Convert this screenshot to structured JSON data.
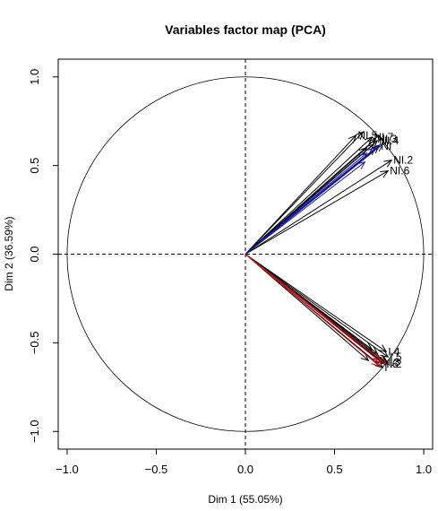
{
  "chart_data": {
    "type": "scatter",
    "title": "Variables factor map (PCA)",
    "xlabel": "Dim 1 (55.05%)",
    "ylabel": "Dim 2 (36.59%)",
    "xlim": [
      -1.05,
      1.05
    ],
    "ylim": [
      -1.1,
      1.1
    ],
    "xticks": [
      {
        "value": -1.0,
        "label": "−1.0"
      },
      {
        "value": -0.5,
        "label": "−0.5"
      },
      {
        "value": 0.0,
        "label": "0.0"
      },
      {
        "value": 0.5,
        "label": "0.5"
      },
      {
        "value": 1.0,
        "label": "1.0"
      }
    ],
    "yticks": [
      {
        "value": -1.0,
        "label": "−1.0"
      },
      {
        "value": -0.5,
        "label": "−0.5"
      },
      {
        "value": 0.0,
        "label": "0.0"
      },
      {
        "value": 0.5,
        "label": "0.5"
      },
      {
        "value": 1.0,
        "label": "1.0"
      }
    ],
    "unit_circle": true,
    "reference_lines": [
      "x=0",
      "y=0"
    ],
    "grid": false,
    "colors": {
      "black": "#000000",
      "blue": "#1a1aa6",
      "red": "#c0161b"
    },
    "arrows": [
      {
        "x": 0.62,
        "y": 0.67,
        "color": "black",
        "label": "NI.5"
      },
      {
        "x": 0.66,
        "y": 0.69,
        "color": "black",
        "label": ""
      },
      {
        "x": 0.71,
        "y": 0.66,
        "color": "black",
        "label": "NI.7"
      },
      {
        "x": 0.73,
        "y": 0.65,
        "color": "black",
        "label": "NI.3"
      },
      {
        "x": 0.74,
        "y": 0.64,
        "color": "black",
        "label": "NI.4"
      },
      {
        "x": 0.72,
        "y": 0.62,
        "color": "black",
        "label": ""
      },
      {
        "x": 0.75,
        "y": 0.61,
        "color": "black",
        "label": "NI"
      },
      {
        "x": 0.68,
        "y": 0.6,
        "color": "black",
        "label": ""
      },
      {
        "x": 0.82,
        "y": 0.53,
        "color": "black",
        "label": "NI.2"
      },
      {
        "x": 0.8,
        "y": 0.47,
        "color": "black",
        "label": "NI.6"
      },
      {
        "x": 0.77,
        "y": 0.62,
        "color": "blue",
        "label": ""
      },
      {
        "x": 0.73,
        "y": 0.6,
        "color": "blue",
        "label": ""
      },
      {
        "x": 0.67,
        "y": 0.52,
        "color": "blue",
        "label": ""
      },
      {
        "x": 0.68,
        "y": 0.57,
        "color": "blue",
        "label": ""
      },
      {
        "x": 0.71,
        "y": -0.54,
        "color": "black",
        "label": ""
      },
      {
        "x": 0.74,
        "y": -0.56,
        "color": "black",
        "label": ""
      },
      {
        "x": 0.79,
        "y": -0.55,
        "color": "black",
        "label": "I.4"
      },
      {
        "x": 0.76,
        "y": -0.6,
        "color": "black",
        "label": ""
      },
      {
        "x": 0.8,
        "y": -0.58,
        "color": "black",
        "label": "I.5"
      },
      {
        "x": 0.78,
        "y": -0.62,
        "color": "black",
        "label": "I.6"
      },
      {
        "x": 0.79,
        "y": -0.61,
        "color": "black",
        "label": "I.3"
      },
      {
        "x": 0.8,
        "y": -0.62,
        "color": "black",
        "label": "I.2"
      },
      {
        "x": 0.77,
        "y": -0.64,
        "color": "black",
        "label": "I"
      },
      {
        "x": 0.69,
        "y": -0.6,
        "color": "black",
        "label": ""
      },
      {
        "x": 0.76,
        "y": -0.61,
        "color": "red",
        "label": ""
      },
      {
        "x": 0.75,
        "y": -0.63,
        "color": "red",
        "label": ""
      },
      {
        "x": 0.79,
        "y": -0.62,
        "color": "red",
        "label": ""
      }
    ]
  }
}
